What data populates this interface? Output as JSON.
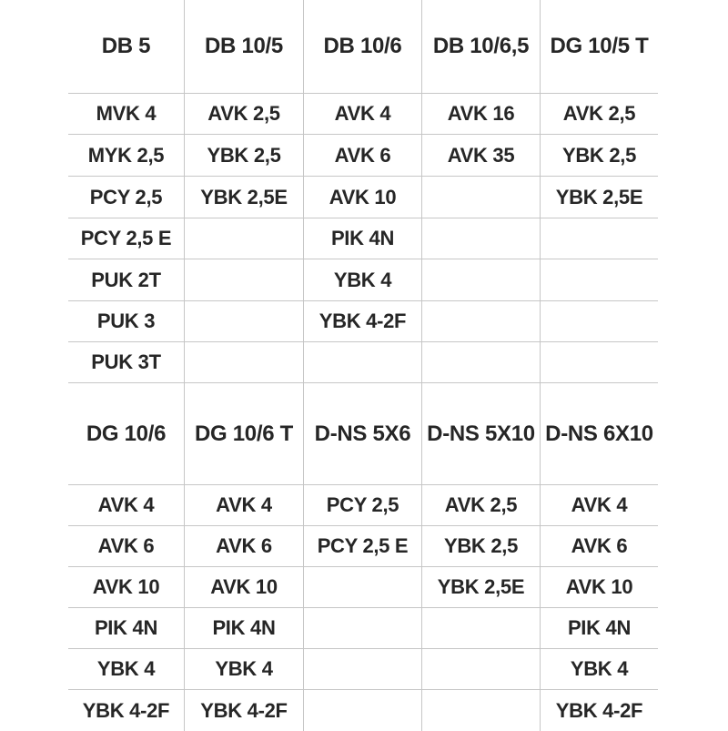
{
  "page": {
    "background_color": "#ffffff"
  },
  "table": {
    "grid_color": "#c6c6c6",
    "text_color": "#262626",
    "sections": [
      {
        "headers": [
          "DB 5",
          "DB 10/5",
          "DB 10/6",
          "DB 10/6,5",
          "DG 10/5 T"
        ],
        "rows": [
          [
            "MVK 4",
            "AVK 2,5",
            "AVK 4",
            "AVK 16",
            "AVK 2,5"
          ],
          [
            "MYK 2,5",
            "YBK 2,5",
            "AVK 6",
            "AVK 35",
            "YBK 2,5"
          ],
          [
            "PCY 2,5",
            "YBK 2,5E",
            "AVK 10",
            "",
            "YBK 2,5E"
          ],
          [
            "PCY 2,5 E",
            "",
            "PIK 4N",
            "",
            ""
          ],
          [
            "PUK 2T",
            "",
            "YBK 4",
            "",
            ""
          ],
          [
            "PUK 3",
            "",
            "YBK 4-2F",
            "",
            ""
          ],
          [
            "PUK 3T",
            "",
            "",
            "",
            ""
          ]
        ]
      },
      {
        "headers": [
          "DG 10/6",
          "DG 10/6 T",
          "D-NS 5X6",
          "D-NS 5X10",
          "D-NS 6X10"
        ],
        "rows": [
          [
            "AVK 4",
            "AVK 4",
            "PCY 2,5",
            "AVK 2,5",
            "AVK 4"
          ],
          [
            "AVK 6",
            "AVK 6",
            "PCY 2,5 E",
            "YBK 2,5",
            "AVK 6"
          ],
          [
            "AVK 10",
            "AVK 10",
            "",
            "YBK 2,5E",
            "AVK 10"
          ],
          [
            "PIK 4N",
            "PIK 4N",
            "",
            "",
            "PIK 4N"
          ],
          [
            "YBK 4",
            "YBK 4",
            "",
            "",
            "YBK 4"
          ],
          [
            "YBK 4-2F",
            "YBK 4-2F",
            "",
            "",
            "YBK 4-2F"
          ]
        ]
      }
    ]
  }
}
